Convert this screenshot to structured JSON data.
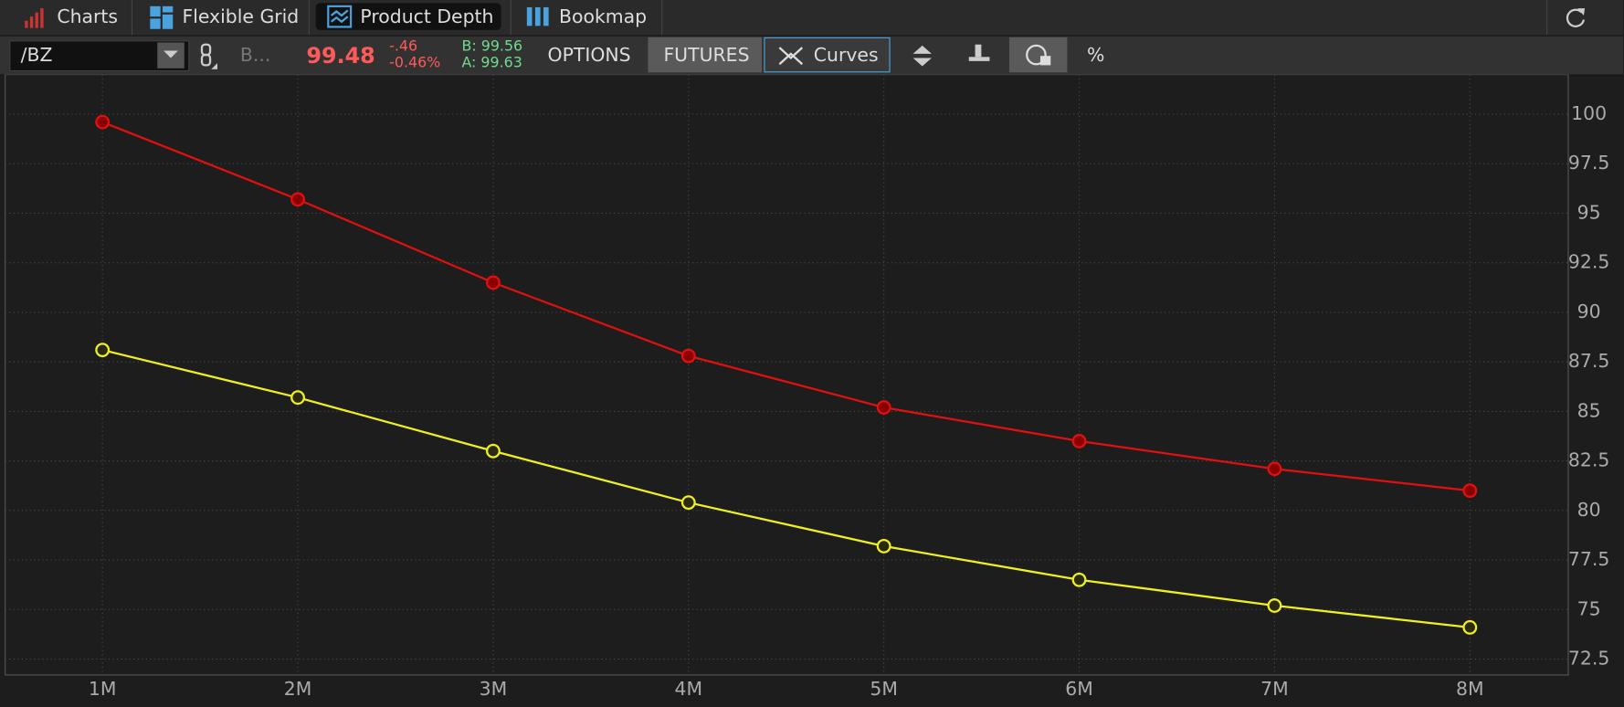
{
  "ui": {
    "tabs": [
      "Charts",
      "Flexible Grid",
      "Product Depth",
      "Bookmap"
    ],
    "symbol": "/BZ",
    "b_button": "B...",
    "price": "99.48",
    "change": "-.46",
    "change_pct": "-0.46%",
    "bid": "B: 99.56",
    "ask": "A: 99.63",
    "options": "OPTIONS",
    "futures": "FUTURES",
    "curves": "Curves",
    "percent": "%"
  },
  "chart_data": {
    "type": "line",
    "categories": [
      "1M",
      "2M",
      "3M",
      "4M",
      "5M",
      "6M",
      "7M",
      "8M"
    ],
    "series": [
      {
        "color": "#e01010",
        "values": [
          99.6,
          95.7,
          91.5,
          87.8,
          85.2,
          83.5,
          82.1,
          81.0
        ]
      },
      {
        "color": "#f0f020",
        "values": [
          88.1,
          85.7,
          83.0,
          80.4,
          78.2,
          76.5,
          75.2,
          74.1
        ]
      }
    ],
    "ylim": [
      71.7,
      102.0
    ],
    "yticks": [
      72.5,
      75,
      77.5,
      80,
      82.5,
      85,
      87.5,
      90,
      92.5,
      95,
      97.5,
      100
    ],
    "grid": true
  }
}
